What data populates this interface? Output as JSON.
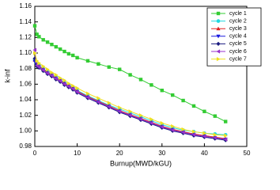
{
  "chart_data": {
    "type": "line",
    "xlabel": "Burnup(MWD/kGU)",
    "ylabel": "k-inf",
    "x": [
      0,
      0.5,
      1,
      2,
      3,
      4,
      5,
      6,
      7,
      8,
      9,
      10,
      12.5,
      15,
      17.5,
      20,
      22.5,
      25,
      27.5,
      30,
      32.5,
      35,
      37.5,
      40,
      42.5,
      45
    ],
    "series": [
      {
        "name": "cycle 1",
        "color": "#33cc33",
        "marker": "square",
        "values": [
          1.135,
          1.124,
          1.121,
          1.117,
          1.114,
          1.111,
          1.108,
          1.105,
          1.102,
          1.099,
          1.097,
          1.094,
          1.09,
          1.086,
          1.082,
          1.079,
          1.072,
          1.066,
          1.059,
          1.052,
          1.046,
          1.039,
          1.032,
          1.025,
          1.019,
          1.012
        ]
      },
      {
        "name": "cycle 2",
        "color": "#22d8e0",
        "marker": "circle",
        "values": [
          1.092,
          1.086,
          1.084,
          1.08,
          1.076,
          1.073,
          1.069,
          1.066,
          1.062,
          1.059,
          1.056,
          1.052,
          1.045,
          1.039,
          1.033,
          1.028,
          1.023,
          1.018,
          1.013,
          1.008,
          1.004,
          1.001,
          0.999,
          0.997,
          0.996,
          0.995
        ]
      },
      {
        "name": "cycle 3",
        "color": "#e02020",
        "marker": "triangle-up",
        "values": [
          1.091,
          1.085,
          1.083,
          1.079,
          1.075,
          1.072,
          1.068,
          1.065,
          1.061,
          1.058,
          1.055,
          1.051,
          1.044,
          1.038,
          1.032,
          1.026,
          1.021,
          1.016,
          1.011,
          1.006,
          1.002,
          0.999,
          0.996,
          0.994,
          0.992,
          0.99
        ]
      },
      {
        "name": "cycle 4",
        "color": "#1a1ae0",
        "marker": "triangle-down",
        "values": [
          1.089,
          1.084,
          1.082,
          1.078,
          1.074,
          1.071,
          1.067,
          1.064,
          1.06,
          1.057,
          1.054,
          1.05,
          1.043,
          1.037,
          1.031,
          1.025,
          1.02,
          1.015,
          1.01,
          1.005,
          1.001,
          0.998,
          0.995,
          0.993,
          0.991,
          0.989
        ]
      },
      {
        "name": "cycle 5",
        "color": "#1a1a80",
        "marker": "diamond",
        "values": [
          1.093,
          1.083,
          1.081,
          1.077,
          1.073,
          1.07,
          1.066,
          1.063,
          1.059,
          1.056,
          1.053,
          1.049,
          1.042,
          1.036,
          1.03,
          1.024,
          1.019,
          1.014,
          1.009,
          1.004,
          1.0,
          0.997,
          0.994,
          0.992,
          0.99,
          0.988
        ]
      },
      {
        "name": "cycle 6",
        "color": "#9933cc",
        "marker": "triangle-left",
        "values": [
          1.104,
          1.084,
          1.082,
          1.078,
          1.074,
          1.071,
          1.067,
          1.064,
          1.06,
          1.057,
          1.054,
          1.05,
          1.043,
          1.037,
          1.031,
          1.025,
          1.02,
          1.015,
          1.01,
          1.005,
          1.001,
          0.998,
          0.995,
          0.993,
          0.991,
          0.989
        ]
      },
      {
        "name": "cycle 7",
        "color": "#f0e020",
        "marker": "triangle-right",
        "values": [
          1.1,
          1.09,
          1.087,
          1.083,
          1.079,
          1.075,
          1.072,
          1.068,
          1.065,
          1.061,
          1.058,
          1.055,
          1.048,
          1.042,
          1.036,
          1.03,
          1.025,
          1.02,
          1.015,
          1.01,
          1.006,
          1.002,
          0.999,
          0.997,
          0.995,
          0.994
        ]
      }
    ],
    "xlim": [
      0,
      50
    ],
    "xticks": [
      0,
      10,
      20,
      30,
      40,
      50
    ],
    "ylim": [
      0.98,
      1.16
    ],
    "yticks": [
      0.98,
      {
        "value": 1,
        "label": "1.00"
      },
      1.02,
      1.04,
      1.06,
      1.08,
      {
        "value": 1.1,
        "label": "1.10"
      },
      1.12,
      1.14,
      1.16
    ],
    "legend": "upper right"
  }
}
